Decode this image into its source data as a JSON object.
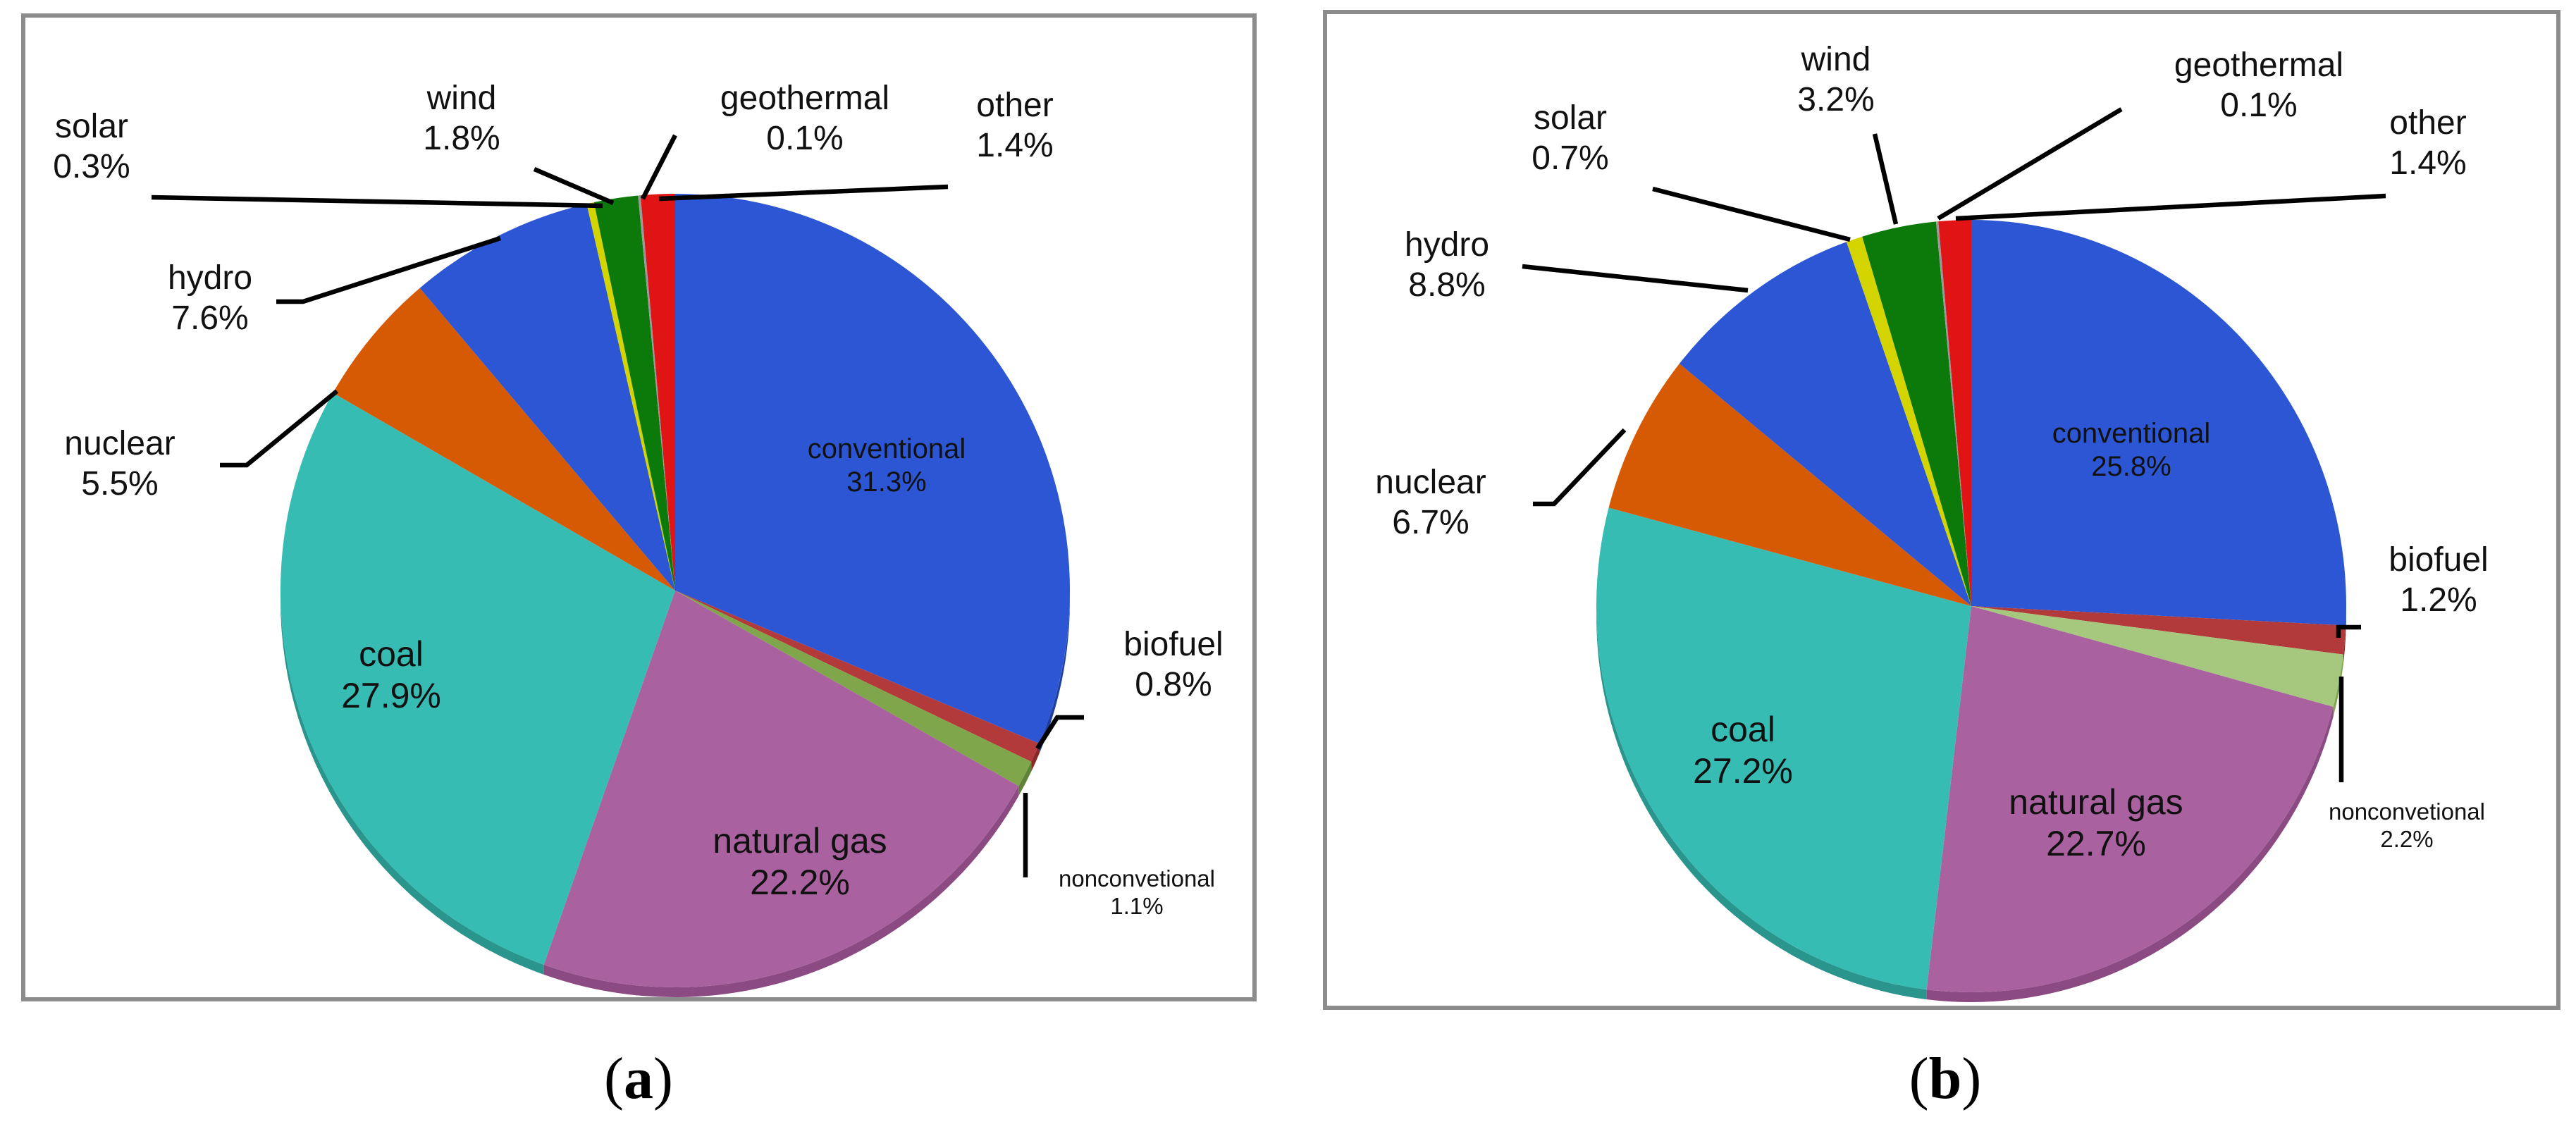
{
  "chart_data": [
    {
      "type": "pie",
      "panel_label": "a",
      "slices": [
        {
          "name": "conventional",
          "value": 31.3,
          "label": "31.3%",
          "color": "#2d56d4",
          "side_color": "#1e3fa3"
        },
        {
          "name": "biofuel",
          "value": 0.8,
          "label": "0.8%",
          "color": "#b23a3a",
          "side_color": "#8a2828"
        },
        {
          "name": "nonconvetional",
          "value": 1.1,
          "label": "1.1%",
          "color": "#7fa64a",
          "side_color": "#5f8236"
        },
        {
          "name": "natural gas",
          "value": 22.2,
          "label": "22.2%",
          "color": "#a9629f",
          "side_color": "#8b4a82"
        },
        {
          "name": "coal",
          "value": 27.9,
          "label": "27.9%",
          "color": "#37bcb3",
          "side_color": "#2a958d"
        },
        {
          "name": "nuclear",
          "value": 5.5,
          "label": "5.5%",
          "color": "#d65a04",
          "side_color": "#a84603"
        },
        {
          "name": "hydro",
          "value": 7.6,
          "label": "7.6%",
          "color": "#2d56d4",
          "side_color": "#1e3fa3"
        },
        {
          "name": "solar",
          "value": 0.3,
          "label": "0.3%",
          "color": "#d4d400",
          "side_color": "#a6a600"
        },
        {
          "name": "wind",
          "value": 1.8,
          "label": "1.8%",
          "color": "#0b7a0b",
          "side_color": "#075c07"
        },
        {
          "name": "geothermal",
          "value": 0.1,
          "label": "0.1%",
          "color": "#9a9a9a",
          "side_color": "#777777"
        },
        {
          "name": "other",
          "value": 1.4,
          "label": "1.4%",
          "color": "#e01414",
          "side_color": "#a80e0e"
        }
      ]
    },
    {
      "type": "pie",
      "panel_label": "b",
      "slices": [
        {
          "name": "conventional",
          "value": 25.8,
          "label": "25.8%",
          "color": "#2d56d4",
          "side_color": "#1e3fa3"
        },
        {
          "name": "biofuel",
          "value": 1.2,
          "label": "1.2%",
          "color": "#b23a3a",
          "side_color": "#8a2828"
        },
        {
          "name": "nonconvetional",
          "value": 2.2,
          "label": "2.2%",
          "color": "#a6c87e",
          "side_color": "#7fa64a"
        },
        {
          "name": "natural gas",
          "value": 22.7,
          "label": "22.7%",
          "color": "#a9629f",
          "side_color": "#8b4a82"
        },
        {
          "name": "coal",
          "value": 27.2,
          "label": "27.2%",
          "color": "#37bcb3",
          "side_color": "#2a958d"
        },
        {
          "name": "nuclear",
          "value": 6.7,
          "label": "6.7%",
          "color": "#d65a04",
          "side_color": "#a84603"
        },
        {
          "name": "hydro",
          "value": 8.8,
          "label": "8.8%",
          "color": "#2d56d4",
          "side_color": "#1e3fa3"
        },
        {
          "name": "solar",
          "value": 0.7,
          "label": "0.7%",
          "color": "#d4d400",
          "side_color": "#a6a600"
        },
        {
          "name": "wind",
          "value": 3.2,
          "label": "3.2%",
          "color": "#0b7a0b",
          "side_color": "#075c07"
        },
        {
          "name": "geothermal",
          "value": 0.1,
          "label": "0.1%",
          "color": "#9a9a9a",
          "side_color": "#777777"
        },
        {
          "name": "other",
          "value": 1.4,
          "label": "1.4%",
          "color": "#e01414",
          "side_color": "#a80e0e"
        }
      ]
    }
  ]
}
